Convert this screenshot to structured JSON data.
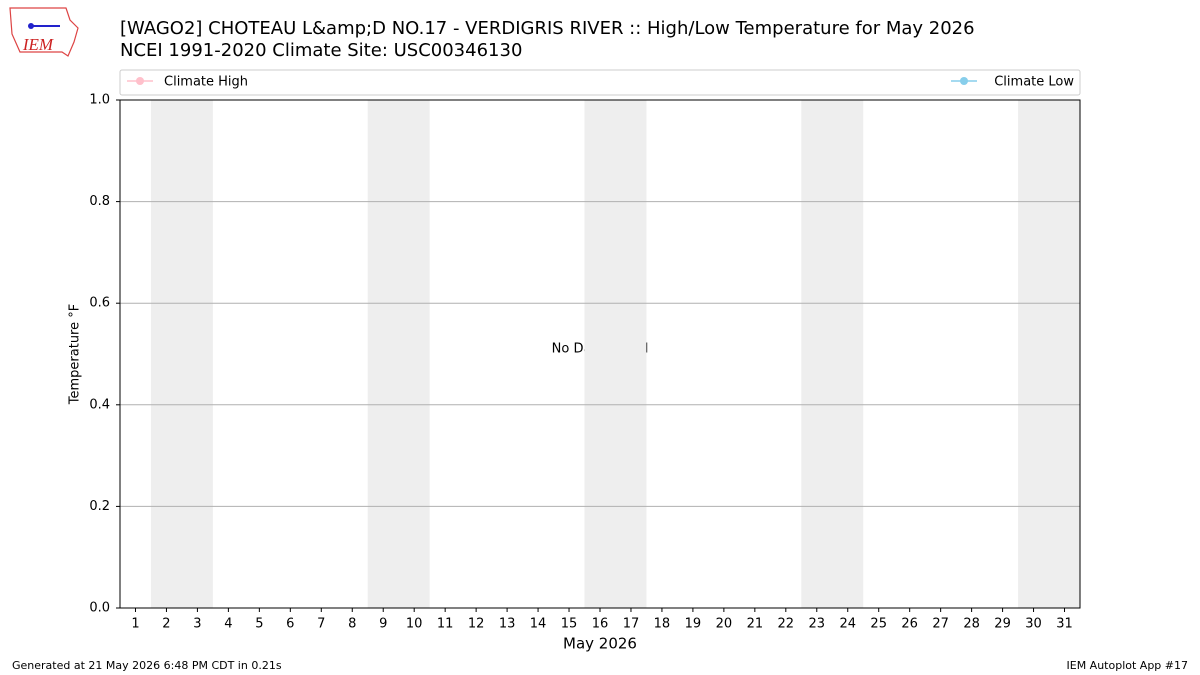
{
  "logo_text": "IEM",
  "chart_data": {
    "type": "line",
    "title": "[WAGO2] CHOTEAU L&amp;D NO.17 - VERDIGRIS RIVER :: High/Low Temperature for May 2026",
    "subtitle": "NCEI 1991-2020 Climate Site: USC00346130",
    "xlabel": "May 2026",
    "ylabel": "Temperature °F",
    "annotation": "No Data Found",
    "xlim": [
      0.5,
      31.5
    ],
    "xticks": [
      1,
      2,
      3,
      4,
      5,
      6,
      7,
      8,
      9,
      10,
      11,
      12,
      13,
      14,
      15,
      16,
      17,
      18,
      19,
      20,
      21,
      22,
      23,
      24,
      25,
      26,
      27,
      28,
      29,
      30,
      31
    ],
    "ylim": [
      0,
      1
    ],
    "yticks": [
      {
        "value": 0,
        "label": "0.0"
      },
      0.2,
      0.4,
      0.6,
      0.8,
      {
        "value": 1,
        "label": "1.0"
      }
    ],
    "grid": true,
    "shaded_spans": [
      [
        1.5,
        3.5
      ],
      [
        8.5,
        10.5
      ],
      [
        15.5,
        17.5
      ],
      [
        22.5,
        24.5
      ],
      [
        29.5,
        31.5
      ]
    ],
    "shade_color": "#eeeeee",
    "legend": "top",
    "series": [
      {
        "name": "Climate High",
        "color": "#ffc0cb",
        "values": []
      },
      {
        "name": "Climate Low",
        "color": "#87ceeb",
        "values": []
      }
    ],
    "footer_left": "Generated at 21 May 2026 6:48 PM CDT in 0.21s",
    "footer_right": "IEM Autoplot App #17"
  }
}
